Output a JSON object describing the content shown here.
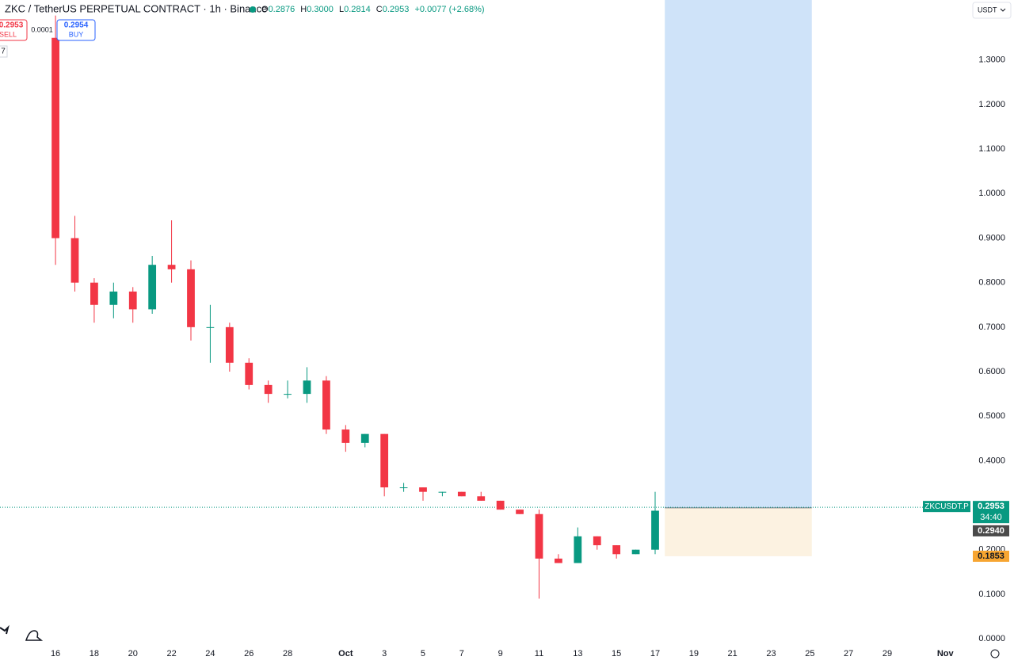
{
  "chart_data": {
    "type": "candlestick",
    "title": "ZKC / TetherUS PERPETUAL CONTRACT · 1h · Binance",
    "ohlc_header": {
      "open_label": "O",
      "open": "0.2876",
      "high_label": "H",
      "high": "0.3000",
      "low_label": "L",
      "low": "0.2814",
      "close_label": "C",
      "close": "0.2953",
      "change": "+0.0077 (+2.68%)"
    },
    "trade_buttons": {
      "sell_price": "0.2953",
      "sell": "SELL",
      "spread": "0.0001",
      "buy_price": "0.2954",
      "buy": "BUY"
    },
    "interval_badge": "7",
    "currency": "USDT",
    "up_color": "#089981",
    "down_color": "#f23645",
    "x": [
      0,
      1,
      2,
      3,
      4,
      5,
      6,
      7,
      8,
      9,
      10,
      11,
      12,
      13,
      14,
      15,
      16,
      17,
      18,
      19,
      20,
      21,
      22,
      23,
      24,
      25,
      26,
      27,
      28,
      29,
      30,
      31
    ],
    "open": [
      1.35,
      0.9,
      0.8,
      0.75,
      0.78,
      0.74,
      0.84,
      0.83,
      0.7,
      0.7,
      0.62,
      0.57,
      0.55,
      0.55,
      0.58,
      0.47,
      0.44,
      0.46,
      0.34,
      0.34,
      0.33,
      0.33,
      0.32,
      0.31,
      0.29,
      0.28,
      0.18,
      0.17,
      0.23,
      0.21,
      0.19,
      0.2
    ],
    "high": [
      1.4,
      0.95,
      0.81,
      0.8,
      0.79,
      0.86,
      0.94,
      0.85,
      0.75,
      0.71,
      0.63,
      0.58,
      0.58,
      0.61,
      0.59,
      0.48,
      0.46,
      0.46,
      0.35,
      0.34,
      0.33,
      0.33,
      0.33,
      0.31,
      0.29,
      0.29,
      0.19,
      0.25,
      0.23,
      0.21,
      0.2,
      0.33
    ],
    "low": [
      0.84,
      0.78,
      0.71,
      0.72,
      0.71,
      0.73,
      0.8,
      0.67,
      0.62,
      0.6,
      0.56,
      0.53,
      0.54,
      0.53,
      0.46,
      0.42,
      0.43,
      0.32,
      0.33,
      0.31,
      0.32,
      0.32,
      0.31,
      0.29,
      0.28,
      0.09,
      0.17,
      0.17,
      0.2,
      0.18,
      0.19,
      0.19
    ],
    "close": [
      0.9,
      0.8,
      0.75,
      0.78,
      0.74,
      0.84,
      0.83,
      0.7,
      0.7,
      0.62,
      0.57,
      0.55,
      0.55,
      0.58,
      0.47,
      0.44,
      0.46,
      0.34,
      0.34,
      0.33,
      0.33,
      0.32,
      0.31,
      0.29,
      0.28,
      0.18,
      0.17,
      0.23,
      0.21,
      0.19,
      0.2,
      0.2876
    ],
    "xlim": [
      -2.87,
      47.3
    ],
    "ylim": [
      -0.04,
      1.435
    ],
    "xticks": [
      {
        "value": 0,
        "label": "16"
      },
      {
        "value": 2,
        "label": "18"
      },
      {
        "value": 4,
        "label": "20"
      },
      {
        "value": 6,
        "label": "22"
      },
      {
        "value": 8,
        "label": "24"
      },
      {
        "value": 10,
        "label": "26"
      },
      {
        "value": 12,
        "label": "28"
      },
      {
        "value": 15,
        "label": "Oct"
      },
      {
        "value": 17,
        "label": "3"
      },
      {
        "value": 19,
        "label": "5"
      },
      {
        "value": 21,
        "label": "7"
      },
      {
        "value": 23,
        "label": "9"
      },
      {
        "value": 25,
        "label": "11"
      },
      {
        "value": 27,
        "label": "13"
      },
      {
        "value": 29,
        "label": "15"
      },
      {
        "value": 31,
        "label": "17"
      },
      {
        "value": 33,
        "label": "19"
      },
      {
        "value": 35,
        "label": "21"
      },
      {
        "value": 37,
        "label": "23"
      },
      {
        "value": 39,
        "label": "25"
      },
      {
        "value": 41,
        "label": "27"
      },
      {
        "value": 43,
        "label": "29"
      },
      {
        "value": 46,
        "label": "Nov"
      }
    ],
    "yticks": [
      {
        "value": 0,
        "label": "0.0000"
      },
      {
        "value": 0.1,
        "label": "0.1000"
      },
      {
        "value": 0.2,
        "label": "0.2000"
      },
      {
        "value": 0.4,
        "label": "0.4000"
      },
      {
        "value": 0.5,
        "label": "0.5000"
      },
      {
        "value": 0.6,
        "label": "0.6000"
      },
      {
        "value": 0.7,
        "label": "0.7000"
      },
      {
        "value": 0.8,
        "label": "0.8000"
      },
      {
        "value": 0.9,
        "label": "0.9000"
      },
      {
        "value": 1,
        "label": "1.0000"
      },
      {
        "value": 1.1,
        "label": "1.1000"
      },
      {
        "value": 1.2,
        "label": "1.2000"
      },
      {
        "value": 1.3,
        "label": "1.3000"
      }
    ],
    "last_price": {
      "symbol": "ZKCUSDT.P",
      "value": 0.2953,
      "label": "0.2953",
      "countdown": "34:40"
    },
    "position_tool": {
      "x_start": 31.5,
      "x_end": 39.1,
      "target": 1.435,
      "entry": 0.294,
      "entry_label": "0.2940",
      "stop": 0.1853,
      "stop_label": "0.1853"
    }
  }
}
